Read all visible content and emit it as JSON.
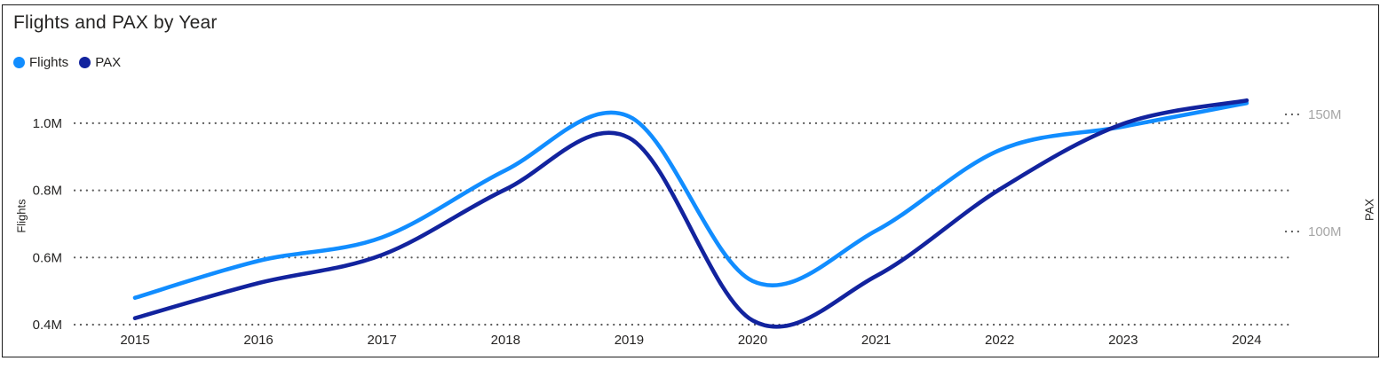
{
  "title": "Flights and PAX by Year",
  "legend": {
    "items": [
      {
        "label": "Flights",
        "color": "#118DFF"
      },
      {
        "label": "PAX",
        "color": "#12239E"
      }
    ]
  },
  "chart_data": {
    "type": "line",
    "title": "Flights and PAX by Year",
    "smooth": true,
    "grid": "dotted",
    "legend_position": "top-left",
    "x": [
      2015,
      2016,
      2017,
      2018,
      2019,
      2020,
      2021,
      2022,
      2023,
      2024
    ],
    "x_tick_labels": [
      "2015",
      "2016",
      "2017",
      "2018",
      "2019",
      "2020",
      "2021",
      "2022",
      "2023",
      "2024"
    ],
    "series": [
      {
        "name": "Flights",
        "axis": "left",
        "color": "#118DFF",
        "values_millions": [
          0.48,
          0.59,
          0.66,
          0.86,
          1.02,
          0.53,
          0.68,
          0.92,
          0.99,
          1.06
        ]
      },
      {
        "name": "PAX",
        "axis": "right",
        "color": "#12239E",
        "values_millions": [
          63,
          78,
          90,
          118,
          140,
          62,
          81,
          118,
          146,
          156
        ]
      }
    ],
    "left_axis": {
      "title": "Flights",
      "tick_labels": [
        "0.4M",
        "0.6M",
        "0.8M",
        "1.0M"
      ],
      "tick_values": [
        0.4,
        0.6,
        0.8,
        1.0
      ],
      "range": [
        0.4,
        1.0
      ]
    },
    "right_axis": {
      "title": "PAX",
      "tick_labels": [
        "100M",
        "150M"
      ],
      "tick_values": [
        100,
        150
      ]
    }
  },
  "colors": {
    "background": "#FFFFFF",
    "frame_border": "#1B1B1B",
    "grid_dots": "#5A5A5A",
    "title_text": "#252423",
    "axis_text": "#252423",
    "right_axis_text": "#A6A6A6"
  }
}
